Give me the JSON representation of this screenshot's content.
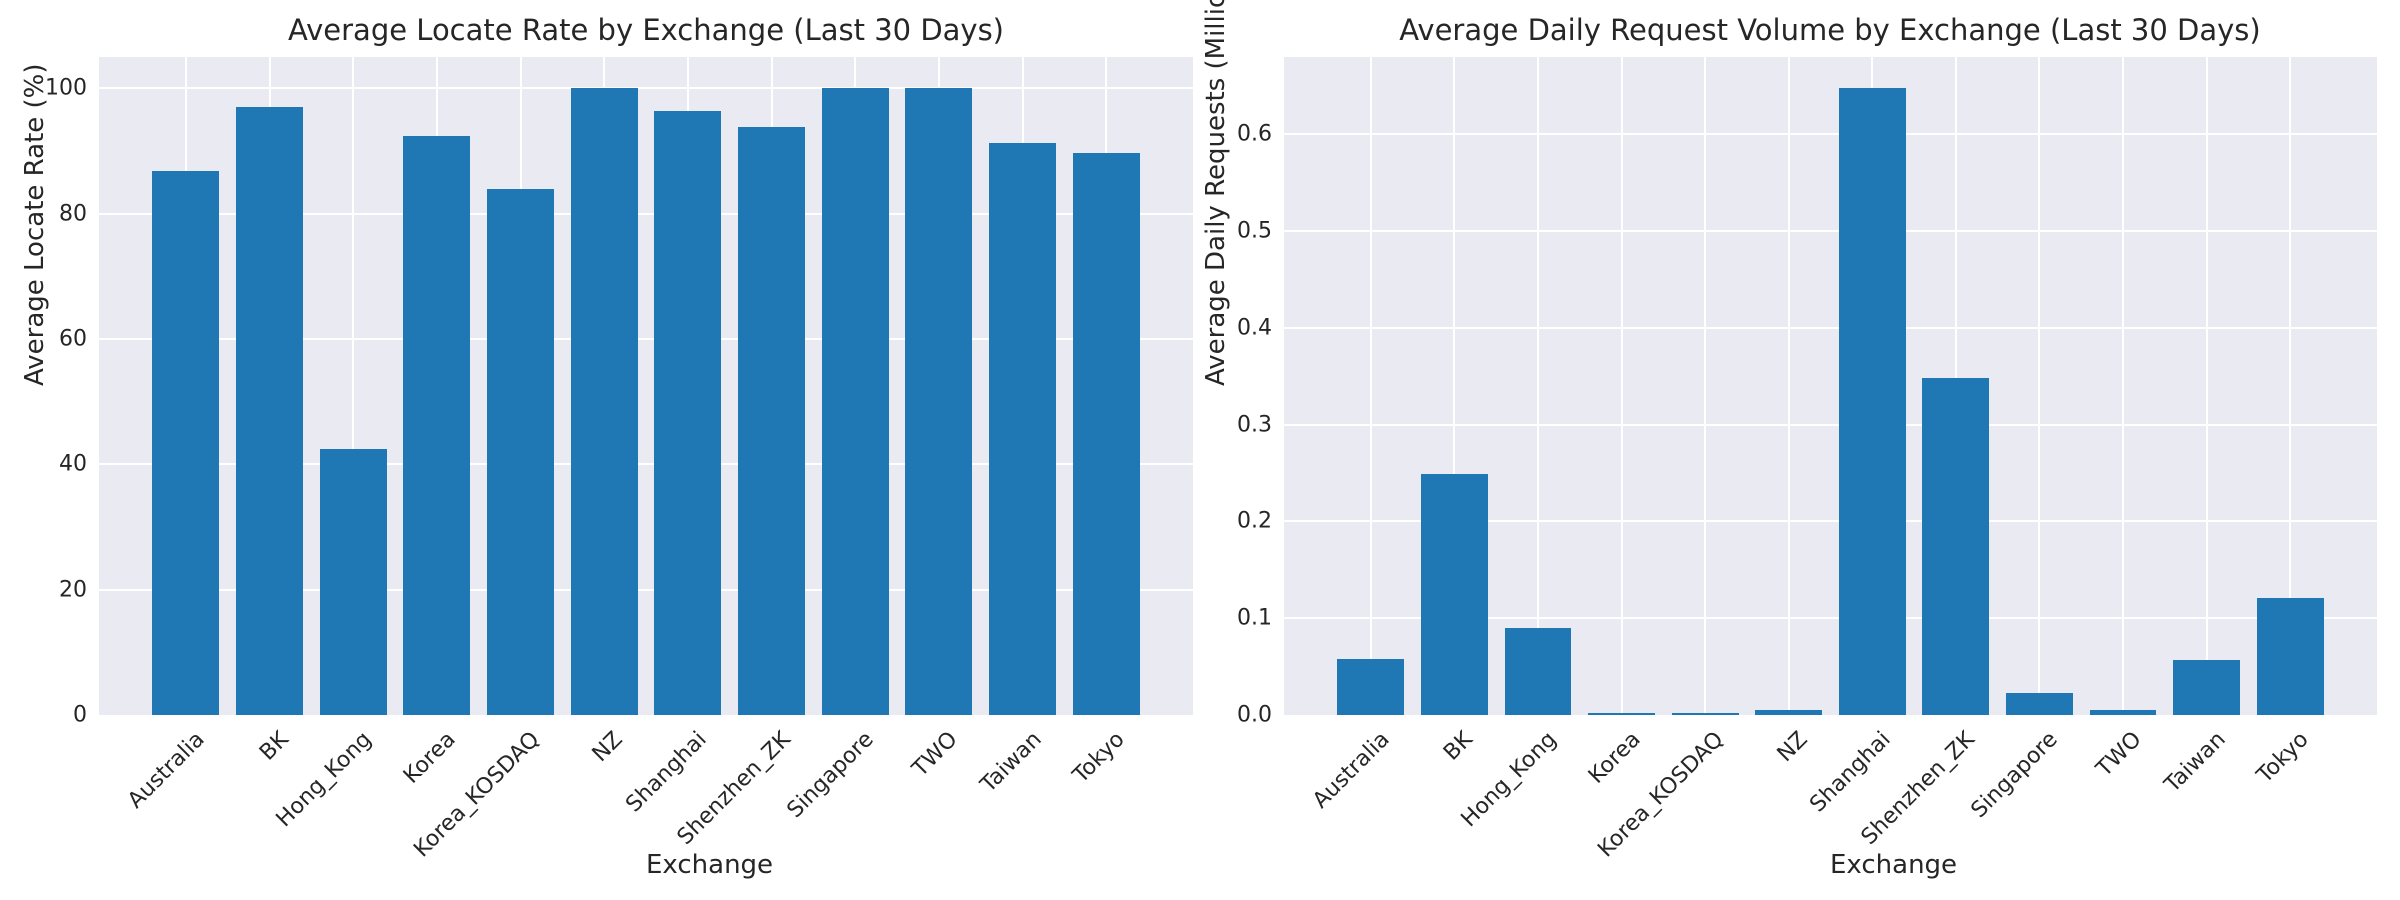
{
  "style": {
    "figure_bg": "#ffffff",
    "plot_bg": "#eaeaf2",
    "grid_color": "#ffffff",
    "text_color": "#262626",
    "bar_color": "#1f77b4"
  },
  "chart_data": [
    {
      "type": "bar",
      "title": "Average Locate Rate by Exchange (Last 30 Days)",
      "xlabel": "Exchange",
      "ylabel": "Average Locate Rate (%)",
      "categories": [
        "Australia",
        "BK",
        "Hong_Kong",
        "Korea",
        "Korea_KOSDAQ",
        "NZ",
        "Shanghai",
        "Shenzhen_ZK",
        "Singapore",
        "TWO",
        "Taiwan",
        "Tokyo"
      ],
      "values": [
        86.8,
        97.0,
        42.4,
        92.4,
        84.0,
        100.0,
        96.4,
        93.9,
        100.0,
        100.0,
        91.3,
        89.7
      ],
      "yticks": [
        0,
        20,
        40,
        60,
        80,
        100
      ],
      "ytick_labels": [
        "0",
        "20",
        "40",
        "60",
        "80",
        "100"
      ],
      "ylim": [
        0,
        105
      ],
      "grid": true,
      "legend": null,
      "bar_color": "#1f77b4"
    },
    {
      "type": "bar",
      "title": "Average Daily Request Volume by Exchange (Last 30 Days)",
      "xlabel": "Exchange",
      "ylabel": "Average Daily Requests (Millions)",
      "categories": [
        "Australia",
        "BK",
        "Hong_Kong",
        "Korea",
        "Korea_KOSDAQ",
        "NZ",
        "Shanghai",
        "Shenzhen_ZK",
        "Singapore",
        "TWO",
        "Taiwan",
        "Tokyo"
      ],
      "values": [
        0.058,
        0.249,
        0.09,
        0.002,
        0.0025,
        0.0055,
        0.648,
        0.348,
        0.023,
        0.0055,
        0.057,
        0.121
      ],
      "yticks": [
        0.0,
        0.1,
        0.2,
        0.3,
        0.4,
        0.5,
        0.6
      ],
      "ytick_labels": [
        "0.0",
        "0.1",
        "0.2",
        "0.3",
        "0.4",
        "0.5",
        "0.6"
      ],
      "ylim": [
        0,
        0.68
      ],
      "grid": true,
      "legend": null,
      "bar_color": "#1f77b4"
    }
  ]
}
